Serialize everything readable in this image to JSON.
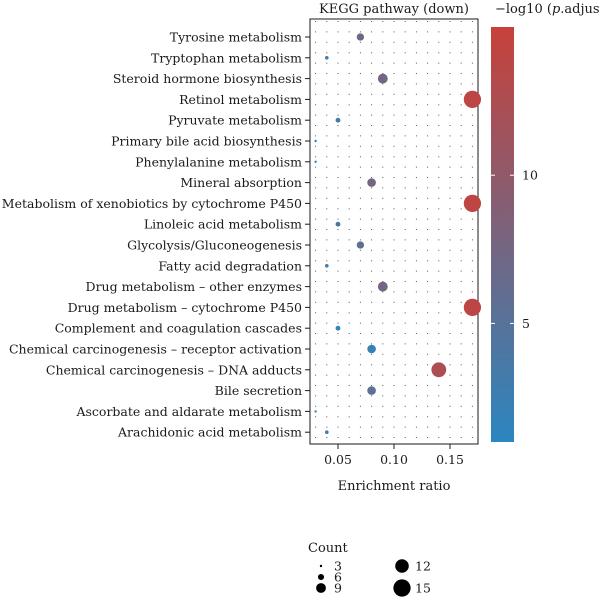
{
  "chart_data": {
    "type": "scatter",
    "title": "KEGG pathway (down)",
    "xlabel": "Enrichment ratio",
    "ylabel": "",
    "xlim": [
      0.025,
      0.175
    ],
    "x_ticks": [
      "0.05",
      "0.10",
      "0.15"
    ],
    "grid": "dotted",
    "categories": [
      "Tyrosine metabolism",
      "Tryptophan metabolism",
      "Steroid hormone biosynthesis",
      "Retinol metabolism",
      "Pyruvate metabolism",
      "Primary bile acid biosynthesis",
      "Phenylalanine metabolism",
      "Mineral absorption",
      "Metabolism of xenobiotics by cytochrome P450",
      "Linoleic acid metabolism",
      "Glycolysis/Gluconeogenesis",
      "Fatty acid degradation",
      "Drug metabolism – other enzymes",
      "Drug metabolism – cytochrome P450",
      "Complement and coagulation cascades",
      "Chemical carcinogenesis – receptor activation",
      "Chemical carcinogenesis – DNA adducts",
      "Bile secretion",
      "Ascorbate and aldarate metabolism",
      "Arachidonic acid metabolism"
    ],
    "points": [
      {
        "pathway": "Tyrosine metabolism",
        "ratio": 0.07,
        "count": 7,
        "neglog10_padj": 7.0
      },
      {
        "pathway": "Tryptophan metabolism",
        "ratio": 0.04,
        "count": 4,
        "neglog10_padj": 2.5
      },
      {
        "pathway": "Steroid hormone biosynthesis",
        "ratio": 0.09,
        "count": 9,
        "neglog10_padj": 7.5
      },
      {
        "pathway": "Retinol metabolism",
        "ratio": 0.17,
        "count": 15,
        "neglog10_padj": 14.0
      },
      {
        "pathway": "Pyruvate metabolism",
        "ratio": 0.05,
        "count": 5,
        "neglog10_padj": 3.5
      },
      {
        "pathway": "Primary bile acid biosynthesis",
        "ratio": 0.03,
        "count": 3,
        "neglog10_padj": 2.5
      },
      {
        "pathway": "Phenylalanine metabolism",
        "ratio": 0.03,
        "count": 3,
        "neglog10_padj": 2.5
      },
      {
        "pathway": "Mineral absorption",
        "ratio": 0.08,
        "count": 8,
        "neglog10_padj": 7.5
      },
      {
        "pathway": "Metabolism of xenobiotics by cytochrome P450",
        "ratio": 0.17,
        "count": 15,
        "neglog10_padj": 14.0
      },
      {
        "pathway": "Linoleic acid metabolism",
        "ratio": 0.05,
        "count": 5,
        "neglog10_padj": 4.0
      },
      {
        "pathway": "Glycolysis/Gluconeogenesis",
        "ratio": 0.07,
        "count": 7,
        "neglog10_padj": 5.5
      },
      {
        "pathway": "Fatty acid degradation",
        "ratio": 0.04,
        "count": 4,
        "neglog10_padj": 2.5
      },
      {
        "pathway": "Drug metabolism – other enzymes",
        "ratio": 0.09,
        "count": 9,
        "neglog10_padj": 7.5
      },
      {
        "pathway": "Drug metabolism – cytochrome P450",
        "ratio": 0.17,
        "count": 15,
        "neglog10_padj": 14.0
      },
      {
        "pathway": "Complement and coagulation cascades",
        "ratio": 0.05,
        "count": 5,
        "neglog10_padj": 1.5
      },
      {
        "pathway": "Chemical carcinogenesis – receptor activation",
        "ratio": 0.08,
        "count": 8,
        "neglog10_padj": 2.0
      },
      {
        "pathway": "Chemical carcinogenesis – DNA adducts",
        "ratio": 0.14,
        "count": 13,
        "neglog10_padj": 12.5
      },
      {
        "pathway": "Bile secretion",
        "ratio": 0.08,
        "count": 8,
        "neglog10_padj": 5.5
      },
      {
        "pathway": "Ascorbate and aldarate metabolism",
        "ratio": 0.03,
        "count": 3,
        "neglog10_padj": 2.5
      },
      {
        "pathway": "Arachidonic acid metabolism",
        "ratio": 0.04,
        "count": 4,
        "neglog10_padj": 3.5
      }
    ],
    "color_scale": {
      "title_prefix": "−log10 (",
      "title_italic": "p",
      "title_suffix": ".adjust)",
      "range": [
        1,
        15
      ],
      "ticks": [
        "5",
        "10"
      ],
      "low_color": "#2b86c0",
      "high_color": "#c8413a"
    },
    "size_legend": {
      "title": "Count",
      "items": [
        "3",
        "6",
        "9",
        "12",
        "15"
      ]
    }
  }
}
